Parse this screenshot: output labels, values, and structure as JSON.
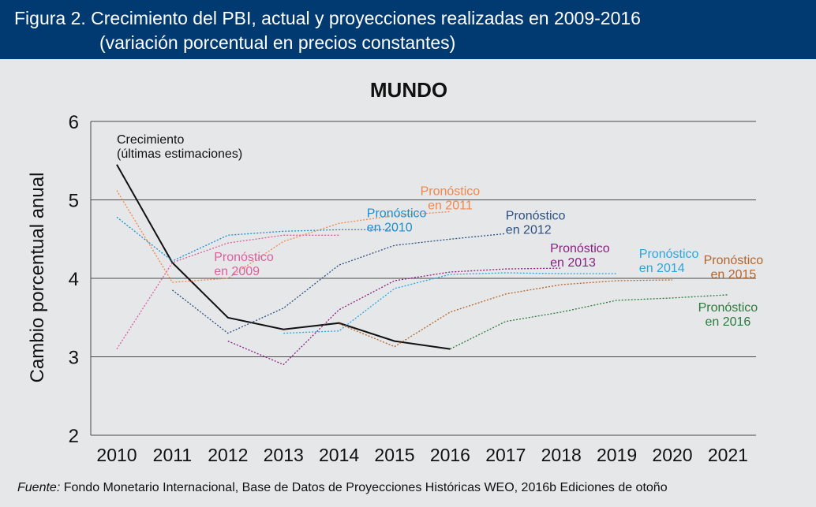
{
  "header": {
    "title_line1": "Figura 2. Crecimiento del PBI, actual y proyecciones realizadas en 2009-2016",
    "title_line2": "(variación porcentual en precios constantes)"
  },
  "source": {
    "label": "Fuente:",
    "text": "Fondo Monetario Internacional, Base de Datos de Proyecciones Históricas WEO, 2016b Ediciones de otoño"
  },
  "chart_data": {
    "type": "line",
    "title": "MUNDO",
    "ylabel": "Cambio porcentual anual",
    "xlabel": "",
    "ylim": [
      2,
      6
    ],
    "yticks": [
      2,
      3,
      4,
      5,
      6
    ],
    "xticks": [
      2010,
      2011,
      2012,
      2013,
      2014,
      2015,
      2016,
      2017,
      2018,
      2019,
      2020,
      2021
    ],
    "grid": "horizontal",
    "series": [
      {
        "name": "Crecimiento (últimas estimaciones)",
        "label_lines": [
          "Crecimiento",
          "(últimas estimaciones)"
        ],
        "color": "#111111",
        "dashed": false,
        "points": [
          [
            2010,
            5.45
          ],
          [
            2011,
            4.2
          ],
          [
            2012,
            3.5
          ],
          [
            2013,
            3.35
          ],
          [
            2014,
            3.43
          ],
          [
            2015,
            3.2
          ],
          [
            2016,
            3.1
          ]
        ]
      },
      {
        "name": "Pronóstico en 2009",
        "label_lines": [
          "Pronóstico",
          "en 2009"
        ],
        "color": "#d9609e",
        "dashed": true,
        "points": [
          [
            2010,
            3.1
          ],
          [
            2011,
            4.2
          ],
          [
            2012,
            4.45
          ],
          [
            2013,
            4.55
          ],
          [
            2014,
            4.55
          ]
        ]
      },
      {
        "name": "Pronóstico en 2010",
        "label_lines": [
          "Pronóstico",
          "en 2010"
        ],
        "color": "#1b8fce",
        "dashed": true,
        "points": [
          [
            2010,
            4.78
          ],
          [
            2011,
            4.22
          ],
          [
            2012,
            4.55
          ],
          [
            2013,
            4.6
          ],
          [
            2014,
            4.62
          ],
          [
            2015,
            4.62
          ]
        ]
      },
      {
        "name": "Pronóstico en 2011",
        "label_lines": [
          "Pronóstico",
          "en 2011"
        ],
        "color": "#f0874a",
        "dashed": true,
        "points": [
          [
            2010,
            5.12
          ],
          [
            2011,
            3.95
          ],
          [
            2012,
            4.0
          ],
          [
            2013,
            4.47
          ],
          [
            2014,
            4.7
          ],
          [
            2015,
            4.8
          ],
          [
            2016,
            4.85
          ]
        ]
      },
      {
        "name": "Pronóstico en 2012",
        "label_lines": [
          "Pronóstico",
          "en 2012"
        ],
        "color": "#2c4f84",
        "dashed": true,
        "points": [
          [
            2011,
            3.85
          ],
          [
            2012,
            3.3
          ],
          [
            2013,
            3.62
          ],
          [
            2014,
            4.17
          ],
          [
            2015,
            4.42
          ],
          [
            2016,
            4.5
          ],
          [
            2017,
            4.57
          ]
        ]
      },
      {
        "name": "Pronóstico en 2013",
        "label_lines": [
          "Pronóstico",
          "en 2013"
        ],
        "color": "#8a1f83",
        "dashed": true,
        "points": [
          [
            2012,
            3.2
          ],
          [
            2013,
            2.9
          ],
          [
            2014,
            3.6
          ],
          [
            2015,
            3.97
          ],
          [
            2016,
            4.08
          ],
          [
            2017,
            4.12
          ],
          [
            2018,
            4.13
          ]
        ]
      },
      {
        "name": "Pronóstico en 2014",
        "label_lines": [
          "Pronóstico",
          "en 2014"
        ],
        "color": "#2aa6df",
        "dashed": true,
        "points": [
          [
            2013,
            3.3
          ],
          [
            2014,
            3.33
          ],
          [
            2015,
            3.87
          ],
          [
            2016,
            4.05
          ],
          [
            2017,
            4.07
          ],
          [
            2018,
            4.06
          ],
          [
            2019,
            4.06
          ]
        ]
      },
      {
        "name": "Pronóstico en 2015",
        "label_lines": [
          "Pronóstico",
          "en 2015"
        ],
        "color": "#b5652a",
        "dashed": true,
        "points": [
          [
            2014,
            3.42
          ],
          [
            2015,
            3.13
          ],
          [
            2016,
            3.57
          ],
          [
            2017,
            3.8
          ],
          [
            2018,
            3.92
          ],
          [
            2019,
            3.97
          ],
          [
            2020,
            3.98
          ]
        ]
      },
      {
        "name": "Pronóstico en 2016",
        "label_lines": [
          "Pronóstico",
          "en 2016"
        ],
        "color": "#2b7a3d",
        "dashed": true,
        "points": [
          [
            2016,
            3.1
          ],
          [
            2017,
            3.45
          ],
          [
            2018,
            3.57
          ],
          [
            2019,
            3.72
          ],
          [
            2020,
            3.75
          ],
          [
            2021,
            3.79
          ]
        ]
      }
    ]
  }
}
